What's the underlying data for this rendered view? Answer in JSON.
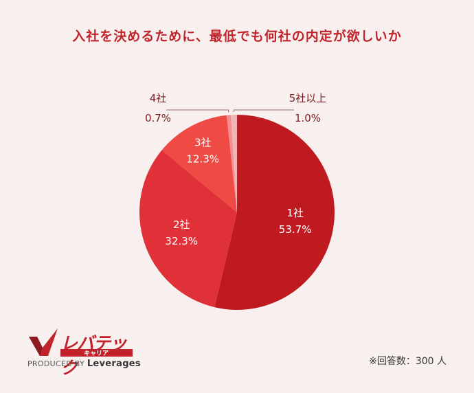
{
  "title": "入社を決めるために、最低でも何社の内定が欲しいか",
  "chart_data": {
    "type": "pie",
    "title": "入社を決めるために、最低でも何社の内定が欲しいか",
    "slices": [
      {
        "label": "1社",
        "value": 53.7,
        "display": "53.7%",
        "color": "#be1a20"
      },
      {
        "label": "2社",
        "value": 32.3,
        "display": "32.3%",
        "color": "#e03138"
      },
      {
        "label": "3社",
        "value": 12.3,
        "display": "12.3%",
        "color": "#ef4a43"
      },
      {
        "label": "4社",
        "value": 0.7,
        "display": "0.7%",
        "color": "#f28f92"
      },
      {
        "label": "5社以上",
        "value": 1.0,
        "display": "1.0%",
        "color": "#f4b3b5"
      }
    ],
    "order_note": "clockwise from 12 o'clock: 1社, 2社, 3社, 4社, 5社以上"
  },
  "logo": {
    "name": "レバテック",
    "sub": "キャリア",
    "produced_by": "PRODUCED BY",
    "company": "Leverages"
  },
  "note": "※回答数：300 人"
}
